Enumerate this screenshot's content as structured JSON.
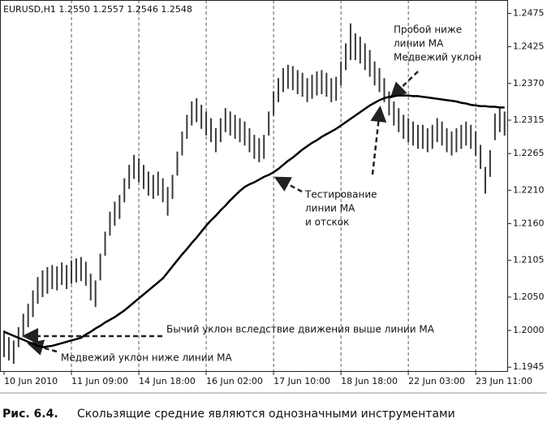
{
  "chart_data": {
    "type": "ohlc",
    "header": "EURUSD,H1  1.2550 1.2557 1.2546 1.2548",
    "categories": [
      "10 Jun 2010",
      null,
      null,
      null,
      null,
      null,
      null,
      null,
      null,
      null,
      null,
      null,
      null,
      null,
      "11 Jun 09:00",
      null,
      null,
      null,
      null,
      null,
      null,
      null,
      null,
      null,
      null,
      null,
      null,
      null,
      "14 Jun 18:00",
      null,
      null,
      null,
      null,
      null,
      null,
      null,
      null,
      null,
      null,
      null,
      null,
      null,
      "16 Jun 02:00",
      null,
      null,
      null,
      null,
      null,
      null,
      null,
      null,
      null,
      null,
      null,
      null,
      null,
      "17 Jun 10:00",
      null,
      null,
      null,
      null,
      null,
      null,
      null,
      null,
      null,
      null,
      null,
      null,
      null,
      "18 Jun 18:00",
      null,
      null,
      null,
      null,
      null,
      null,
      null,
      null,
      null,
      null,
      null,
      null,
      null,
      "22 Jun 03:00",
      null,
      null,
      null,
      null,
      null,
      null,
      null,
      null,
      null,
      null,
      null,
      null,
      null,
      "23 Jun 11:00",
      null,
      null,
      null,
      null,
      null,
      null
    ],
    "high": [
      1.2,
      1.199,
      1.1985,
      1.2005,
      1.2025,
      1.204,
      1.206,
      1.208,
      1.209,
      1.2095,
      1.2098,
      1.2096,
      1.2102,
      1.2098,
      1.2105,
      1.2108,
      1.211,
      1.2103,
      1.2085,
      1.2075,
      1.2115,
      1.2148,
      1.2178,
      1.2193,
      1.2203,
      1.2228,
      1.2248,
      1.2263,
      1.2258,
      1.2248,
      1.2238,
      1.2233,
      1.2238,
      1.2228,
      1.2215,
      1.2233,
      1.2268,
      1.2298,
      1.2323,
      1.2343,
      1.2348,
      1.2338,
      1.2328,
      1.2318,
      1.2303,
      1.2318,
      1.2333,
      1.2328,
      1.2323,
      1.2318,
      1.2313,
      1.2303,
      1.2293,
      1.2288,
      1.2293,
      1.2328,
      1.2358,
      1.2378,
      1.2393,
      1.2398,
      1.2396,
      1.239,
      1.2386,
      1.2378,
      1.2383,
      1.2388,
      1.239,
      1.2386,
      1.2378,
      1.238,
      1.2403,
      1.243,
      1.246,
      1.2445,
      1.244,
      1.243,
      1.242,
      1.2403,
      1.2393,
      1.2378,
      1.2358,
      1.2343,
      1.2333,
      1.2323,
      1.2318,
      1.2313,
      1.2308,
      1.2308,
      1.2303,
      1.2308,
      1.2318,
      1.2313,
      1.2303,
      1.2298,
      1.2303,
      1.2308,
      1.2313,
      1.2308,
      1.2298,
      1.2278,
      1.2245,
      1.227,
      1.2325,
      1.2333,
      1.2328
    ],
    "low": [
      1.196,
      1.1955,
      1.195,
      1.1975,
      1.199,
      1.2005,
      1.202,
      1.204,
      1.205,
      1.2055,
      1.2062,
      1.206,
      1.2068,
      1.2062,
      1.207,
      1.2072,
      1.2074,
      1.2067,
      1.2045,
      1.2035,
      1.2075,
      1.2112,
      1.2142,
      1.2157,
      1.2167,
      1.2192,
      1.2212,
      1.2227,
      1.2222,
      1.2212,
      1.2202,
      1.2197,
      1.2202,
      1.2192,
      1.2172,
      1.2197,
      1.2232,
      1.2262,
      1.2287,
      1.2307,
      1.2312,
      1.2302,
      1.2292,
      1.2282,
      1.2267,
      1.2282,
      1.2297,
      1.2292,
      1.2287,
      1.2282,
      1.2277,
      1.2267,
      1.2257,
      1.2252,
      1.2257,
      1.2292,
      1.2322,
      1.2342,
      1.2357,
      1.2362,
      1.236,
      1.2354,
      1.235,
      1.2342,
      1.2347,
      1.2352,
      1.2354,
      1.235,
      1.2342,
      1.2344,
      1.2367,
      1.239,
      1.2405,
      1.2405,
      1.24,
      1.239,
      1.238,
      1.2367,
      1.2357,
      1.2342,
      1.2322,
      1.2307,
      1.2297,
      1.2287,
      1.2282,
      1.2277,
      1.2272,
      1.2272,
      1.2267,
      1.2272,
      1.2282,
      1.2277,
      1.2267,
      1.2262,
      1.2267,
      1.2272,
      1.2277,
      1.2272,
      1.2262,
      1.2242,
      1.2205,
      1.223,
      1.2285,
      1.2297,
      1.2292
    ],
    "ma": [
      1.1998,
      1.1995,
      1.1992,
      1.1989,
      1.1986,
      1.1983,
      1.198,
      1.1977,
      1.1975,
      1.1976,
      1.1977,
      1.1979,
      1.1981,
      1.1983,
      1.1985,
      1.1987,
      1.1989,
      1.1994,
      1.1998,
      1.2003,
      1.2007,
      1.2012,
      1.2016,
      1.202,
      1.2025,
      1.203,
      1.2036,
      1.2042,
      1.2048,
      1.2054,
      1.206,
      1.2066,
      1.2072,
      1.2078,
      1.2087,
      1.2096,
      1.2105,
      1.2114,
      1.2122,
      1.2131,
      1.2139,
      1.2148,
      1.2157,
      1.2165,
      1.2172,
      1.218,
      1.2187,
      1.2195,
      1.2202,
      1.2209,
      1.2215,
      1.2219,
      1.2222,
      1.2226,
      1.223,
      1.2233,
      1.2237,
      1.2242,
      1.2248,
      1.2254,
      1.2259,
      1.2265,
      1.2271,
      1.2276,
      1.2281,
      1.2285,
      1.229,
      1.2294,
      1.2298,
      1.2302,
      1.2307,
      1.2312,
      1.2317,
      1.2322,
      1.2327,
      1.2332,
      1.2337,
      1.2341,
      1.2345,
      1.2348,
      1.235,
      1.2351,
      1.2352,
      1.2352,
      1.2352,
      1.2351,
      1.2351,
      1.235,
      1.2349,
      1.2348,
      1.2347,
      1.2346,
      1.2345,
      1.2344,
      1.2343,
      1.2341,
      1.234,
      1.2338,
      1.2337,
      1.2336,
      1.2336,
      1.2335,
      1.2335,
      1.2334,
      1.2334
    ],
    "bar_color": "#3a3a3a",
    "ma_color": "#000000",
    "ylim": [
      1.1938,
      1.2495
    ],
    "yticks": [
      {
        "value": 1.2475,
        "label": "1.2475"
      },
      {
        "value": 1.2425,
        "label": "1.2425"
      },
      {
        "value": 1.237,
        "label": "1.2370"
      },
      {
        "value": 1.2315,
        "label": "1.2315"
      },
      {
        "value": 1.2265,
        "label": "1.2265"
      },
      {
        "value": 1.221,
        "label": "1.2210"
      },
      {
        "value": 1.216,
        "label": "1.2160"
      },
      {
        "value": 1.2105,
        "label": "1.2105"
      },
      {
        "value": 1.205,
        "label": "1.2050"
      },
      {
        "value": 1.2,
        "label": "1.2000"
      },
      {
        "value": 1.1945,
        "label": "1.1945"
      }
    ],
    "grid": true,
    "annotations": [
      {
        "lines": [
          "Пробой ниже",
          "линии MA",
          "Медвежий уклон"
        ]
      },
      {
        "lines": [
          "Тестирование",
          "линии MA",
          "и отскок"
        ]
      },
      {
        "lines": [
          "Бычий уклон вследствие движения выше линии MA"
        ]
      },
      {
        "lines": [
          "Медвежий уклон ниже линии MA"
        ]
      }
    ]
  },
  "caption": {
    "label": "Рис. 6.4.",
    "text": "Скользящие средние являются однозначными инструментами"
  }
}
